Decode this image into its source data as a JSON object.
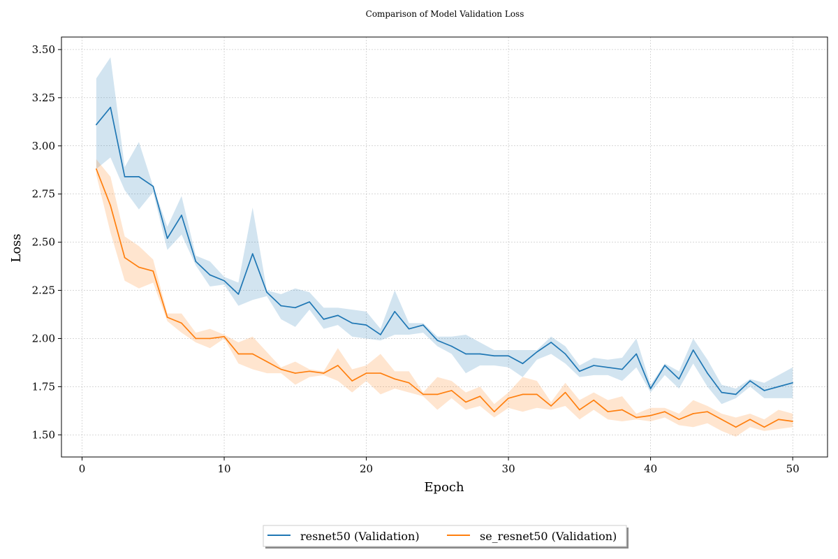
{
  "chart_data": {
    "type": "line",
    "title": "Comparison of Model Validation Loss",
    "xlabel": "Epoch",
    "ylabel": "Loss",
    "xlim": [
      -1.45,
      52.45
    ],
    "ylim": [
      1.385,
      3.565
    ],
    "xticks": [
      0,
      10,
      20,
      30,
      40,
      50
    ],
    "yticks": [
      1.5,
      1.75,
      2.0,
      2.25,
      2.5,
      2.75,
      3.0,
      3.25,
      3.5
    ],
    "ytick_labels": [
      "1.50",
      "1.75",
      "2.00",
      "2.25",
      "2.50",
      "2.75",
      "3.00",
      "3.25",
      "3.50"
    ],
    "grid": true,
    "legend_position": "bottom-center",
    "x": [
      1,
      2,
      3,
      4,
      5,
      6,
      7,
      8,
      9,
      10,
      11,
      12,
      13,
      14,
      15,
      16,
      17,
      18,
      19,
      20,
      21,
      22,
      23,
      24,
      25,
      26,
      27,
      28,
      29,
      30,
      31,
      32,
      33,
      34,
      35,
      36,
      37,
      38,
      39,
      40,
      41,
      42,
      43,
      44,
      45,
      46,
      47,
      48,
      49,
      50
    ],
    "series": [
      {
        "name": "resnet50 (Validation)",
        "color": "#1f77b4",
        "values": [
          3.11,
          3.2,
          2.84,
          2.84,
          2.79,
          2.52,
          2.64,
          2.4,
          2.33,
          2.3,
          2.23,
          2.44,
          2.24,
          2.17,
          2.16,
          2.19,
          2.1,
          2.12,
          2.08,
          2.07,
          2.02,
          2.14,
          2.05,
          2.07,
          1.99,
          1.96,
          1.92,
          1.92,
          1.91,
          1.91,
          1.87,
          1.93,
          1.98,
          1.92,
          1.83,
          1.86,
          1.85,
          1.84,
          1.92,
          1.74,
          1.86,
          1.79,
          1.94,
          1.82,
          1.72,
          1.71,
          1.78,
          1.73,
          1.75,
          1.77
        ],
        "lower": [
          2.88,
          2.94,
          2.77,
          2.67,
          2.76,
          2.46,
          2.54,
          2.38,
          2.27,
          2.28,
          2.17,
          2.2,
          2.22,
          2.1,
          2.06,
          2.15,
          2.05,
          2.07,
          2.01,
          2.0,
          1.99,
          2.02,
          2.02,
          2.03,
          1.96,
          1.92,
          1.82,
          1.86,
          1.86,
          1.85,
          1.8,
          1.89,
          1.92,
          1.87,
          1.8,
          1.81,
          1.81,
          1.78,
          1.85,
          1.72,
          1.81,
          1.74,
          1.87,
          1.75,
          1.66,
          1.69,
          1.75,
          1.69,
          1.69,
          1.69
        ],
        "upper": [
          3.35,
          3.46,
          2.89,
          3.02,
          2.79,
          2.58,
          2.74,
          2.43,
          2.4,
          2.32,
          2.29,
          2.68,
          2.25,
          2.23,
          2.26,
          2.24,
          2.16,
          2.16,
          2.15,
          2.14,
          2.05,
          2.25,
          2.08,
          2.08,
          2.01,
          2.01,
          2.02,
          1.98,
          1.94,
          1.94,
          1.94,
          1.94,
          2.01,
          1.96,
          1.86,
          1.9,
          1.89,
          1.9,
          2.0,
          1.76,
          1.87,
          1.83,
          2.0,
          1.89,
          1.76,
          1.74,
          1.79,
          1.77,
          1.81,
          1.85
        ]
      },
      {
        "name": "se_resnet50 (Validation)",
        "color": "#ff7f0e",
        "values": [
          2.88,
          2.69,
          2.42,
          2.37,
          2.35,
          2.11,
          2.08,
          2.0,
          2.0,
          2.01,
          1.92,
          1.92,
          1.88,
          1.84,
          1.82,
          1.83,
          1.82,
          1.86,
          1.78,
          1.82,
          1.82,
          1.79,
          1.77,
          1.71,
          1.71,
          1.73,
          1.67,
          1.7,
          1.62,
          1.69,
          1.71,
          1.71,
          1.65,
          1.72,
          1.63,
          1.68,
          1.62,
          1.63,
          1.59,
          1.6,
          1.62,
          1.58,
          1.61,
          1.62,
          1.58,
          1.54,
          1.58,
          1.54,
          1.58,
          1.57
        ],
        "lower": [
          2.85,
          2.55,
          2.3,
          2.26,
          2.29,
          2.09,
          2.03,
          1.98,
          1.95,
          2.0,
          1.87,
          1.84,
          1.82,
          1.82,
          1.76,
          1.8,
          1.81,
          1.78,
          1.72,
          1.78,
          1.71,
          1.74,
          1.72,
          1.7,
          1.63,
          1.69,
          1.63,
          1.65,
          1.59,
          1.64,
          1.62,
          1.64,
          1.63,
          1.65,
          1.58,
          1.63,
          1.58,
          1.57,
          1.58,
          1.57,
          1.59,
          1.55,
          1.54,
          1.56,
          1.52,
          1.49,
          1.54,
          1.52,
          1.53,
          1.54
        ],
        "upper": [
          2.93,
          2.84,
          2.53,
          2.48,
          2.41,
          2.13,
          2.13,
          2.03,
          2.05,
          2.02,
          1.98,
          2.01,
          1.93,
          1.85,
          1.88,
          1.84,
          1.83,
          1.95,
          1.84,
          1.86,
          1.92,
          1.83,
          1.83,
          1.72,
          1.8,
          1.78,
          1.72,
          1.75,
          1.66,
          1.72,
          1.8,
          1.78,
          1.67,
          1.77,
          1.68,
          1.72,
          1.68,
          1.7,
          1.61,
          1.64,
          1.64,
          1.61,
          1.68,
          1.65,
          1.61,
          1.59,
          1.61,
          1.58,
          1.63,
          1.61
        ]
      }
    ]
  }
}
